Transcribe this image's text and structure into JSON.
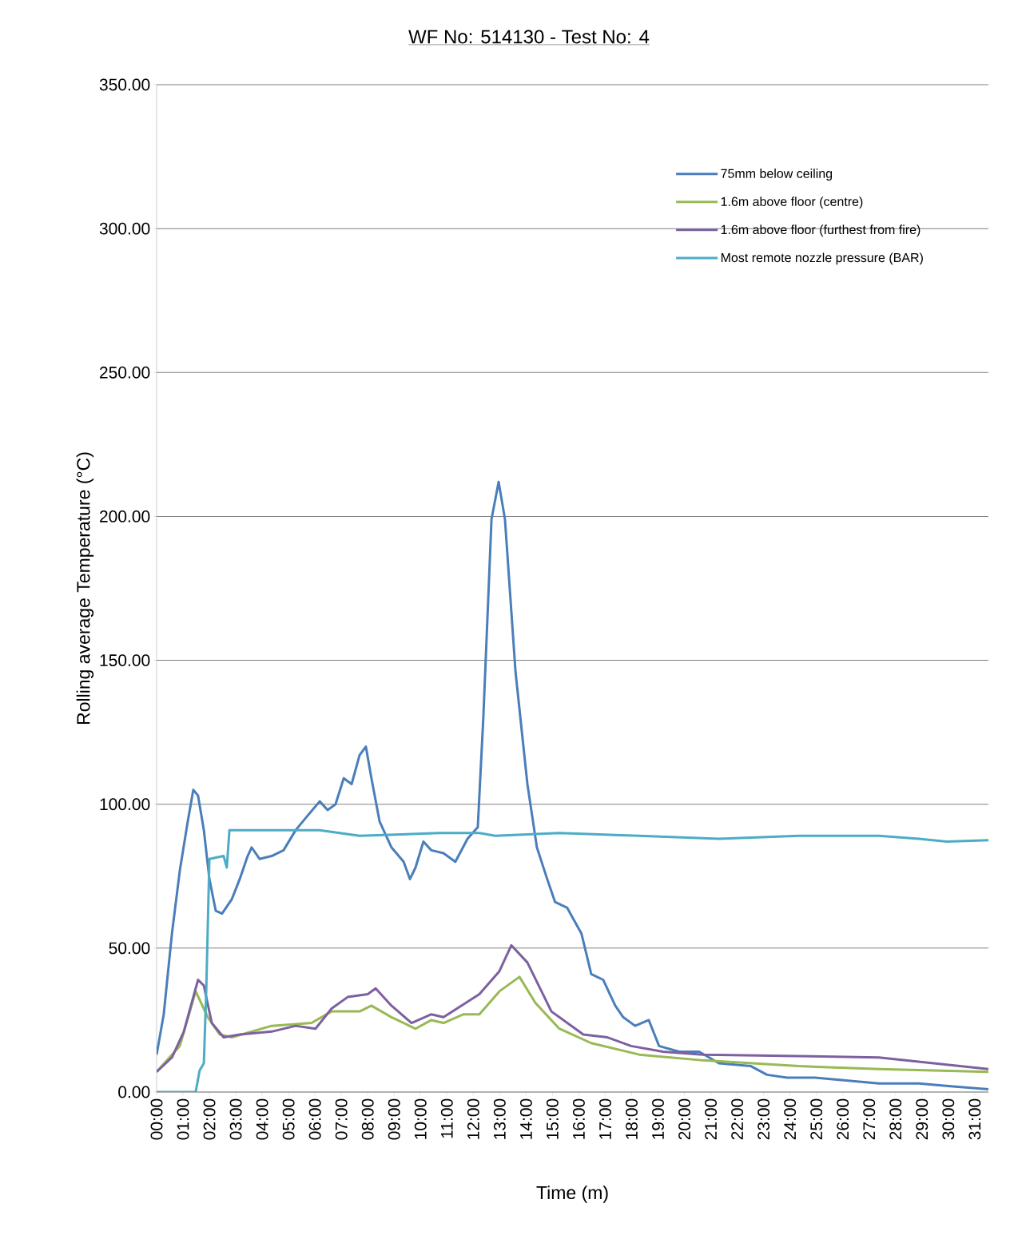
{
  "chart_data": {
    "type": "line",
    "title": "WF No: 514130 - Test No: 4",
    "xlabel": "Time (m)",
    "ylabel": "Rolling average Temperature (°C)",
    "xlim": [
      0,
      31.52
    ],
    "ylim": [
      0,
      350
    ],
    "xticks": [
      {
        "value": 0,
        "label": "00:00"
      },
      {
        "value": 1,
        "label": "01:00"
      },
      {
        "value": 2,
        "label": "02:00"
      },
      {
        "value": 3,
        "label": "03:00"
      },
      {
        "value": 4,
        "label": "04:00"
      },
      {
        "value": 5,
        "label": "05:00"
      },
      {
        "value": 6,
        "label": "06:00"
      },
      {
        "value": 7,
        "label": "07:00"
      },
      {
        "value": 8,
        "label": "08:00"
      },
      {
        "value": 9,
        "label": "09:00"
      },
      {
        "value": 10,
        "label": "10:00"
      },
      {
        "value": 11,
        "label": "11:00"
      },
      {
        "value": 12,
        "label": "12:00"
      },
      {
        "value": 13,
        "label": "13:00"
      },
      {
        "value": 14,
        "label": "14:00"
      },
      {
        "value": 15,
        "label": "15:00"
      },
      {
        "value": 16,
        "label": "16:00"
      },
      {
        "value": 17,
        "label": "17:00"
      },
      {
        "value": 18,
        "label": "18:00"
      },
      {
        "value": 19,
        "label": "19:00"
      },
      {
        "value": 20,
        "label": "20:00"
      },
      {
        "value": 21,
        "label": "21:00"
      },
      {
        "value": 22,
        "label": "22:00"
      },
      {
        "value": 23,
        "label": "23:00"
      },
      {
        "value": 24,
        "label": "24:00"
      },
      {
        "value": 25,
        "label": "25:00"
      },
      {
        "value": 26,
        "label": "26:00"
      },
      {
        "value": 27,
        "label": "27:00"
      },
      {
        "value": 28,
        "label": "28:00"
      },
      {
        "value": 29,
        "label": "29:00"
      },
      {
        "value": 30,
        "label": "30:00"
      },
      {
        "value": 31,
        "label": "31:00"
      }
    ],
    "yticks": [
      {
        "value": 0,
        "label": "0.00"
      },
      {
        "value": 50,
        "label": "50.00"
      },
      {
        "value": 100,
        "label": "100.00"
      },
      {
        "value": 150,
        "label": "150.00"
      },
      {
        "value": 200,
        "label": "200.00"
      },
      {
        "value": 250,
        "label": "250.00"
      },
      {
        "value": 300,
        "label": "300.00"
      },
      {
        "value": 350,
        "label": "350.00"
      }
    ],
    "grid": "y",
    "legend": "top right",
    "marker": "none",
    "line_style": "solid",
    "series": [
      {
        "name": "75mm below ceiling",
        "color": "#4a7ebb",
        "x": [
          0,
          0.27,
          0.58,
          0.88,
          1.18,
          1.39,
          1.57,
          1.79,
          2.0,
          2.24,
          2.48,
          2.85,
          3.15,
          3.45,
          3.6,
          3.9,
          4.36,
          4.81,
          5.27,
          5.72,
          6.18,
          6.48,
          6.78,
          7.09,
          7.39,
          7.69,
          7.93,
          8.14,
          8.45,
          8.9,
          9.36,
          9.6,
          9.81,
          10.11,
          10.41,
          10.87,
          11.32,
          11.78,
          12.17,
          12.38,
          12.69,
          12.96,
          13.2,
          13.6,
          14.05,
          14.41,
          14.8,
          15.1,
          15.56,
          15.86,
          16.1,
          16.47,
          16.92,
          17.38,
          17.68,
          18.13,
          18.65,
          19.04,
          19.8,
          20.56,
          21.31,
          22.52,
          23.13,
          23.89,
          24.95,
          26.16,
          27.37,
          28.88,
          30.09,
          31.52
        ],
        "values": [
          13,
          27,
          55,
          77,
          94,
          105,
          103,
          91,
          74,
          63,
          62,
          67,
          74,
          82,
          85,
          81,
          82,
          84,
          91,
          96,
          101,
          98,
          100,
          109,
          107,
          117,
          120,
          109,
          94,
          85,
          80,
          74,
          78,
          87,
          84,
          83,
          80,
          88,
          92,
          130,
          199,
          212,
          199,
          146,
          107,
          85,
          74,
          66,
          64,
          59,
          55,
          41,
          39,
          30,
          26,
          23,
          25,
          16,
          14,
          14,
          10,
          9,
          6,
          5,
          5,
          4,
          3,
          3,
          2,
          1
        ]
      },
      {
        "name": "1.6m above floor (centre)",
        "color": "#98b954",
        "x": [
          0,
          0.88,
          1.48,
          1.94,
          2.39,
          2.85,
          4.36,
          5.87,
          6.63,
          7.69,
          8.14,
          8.9,
          9.81,
          10.41,
          10.87,
          11.63,
          12.23,
          12.99,
          13.75,
          14.35,
          15.26,
          16.47,
          18.29,
          20.71,
          24.34,
          27.37,
          31.52
        ],
        "values": [
          7,
          16,
          35,
          26,
          20,
          19,
          23,
          24,
          28,
          28,
          30,
          26,
          22,
          25,
          24,
          27,
          27,
          35,
          40,
          31,
          22,
          17,
          13,
          11,
          9,
          8,
          7
        ]
      },
      {
        "name": "1.6m above floor (furthest from fire)",
        "color": "#7d60a0",
        "x": [
          0,
          0.58,
          1.03,
          1.57,
          1.79,
          2.09,
          2.54,
          3.15,
          4.36,
          5.27,
          6.02,
          6.63,
          7.24,
          8.0,
          8.3,
          8.9,
          9.66,
          10.41,
          10.87,
          12.23,
          12.99,
          13.44,
          14.05,
          14.96,
          16.17,
          17.08,
          17.98,
          19.19,
          20.71,
          24.34,
          27.37,
          31.52
        ],
        "values": [
          7,
          12,
          21,
          39,
          37,
          24,
          19,
          20,
          21,
          23,
          22,
          29,
          33,
          34,
          36,
          30,
          24,
          27,
          26,
          34,
          42,
          51,
          45,
          28,
          20,
          19,
          16,
          14,
          13,
          12.5,
          12,
          8
        ]
      },
      {
        "name": "Most remote nozzle pressure (BAR)",
        "color": "#4bacc6",
        "x": [
          0,
          1.48,
          1.63,
          1.79,
          1.88,
          2.0,
          2.54,
          2.66,
          2.76,
          3.15,
          6.18,
          7.69,
          10.72,
          12.23,
          12.84,
          15.26,
          18.29,
          21.31,
          24.34,
          25.85,
          27.37,
          28.88,
          29.94,
          31.52
        ],
        "values": [
          0,
          0,
          7.5,
          10,
          35,
          81,
          82,
          78,
          91,
          91,
          91,
          89,
          90,
          90,
          89,
          90,
          89,
          88,
          89,
          89,
          89,
          88,
          87,
          87.5
        ]
      }
    ]
  }
}
